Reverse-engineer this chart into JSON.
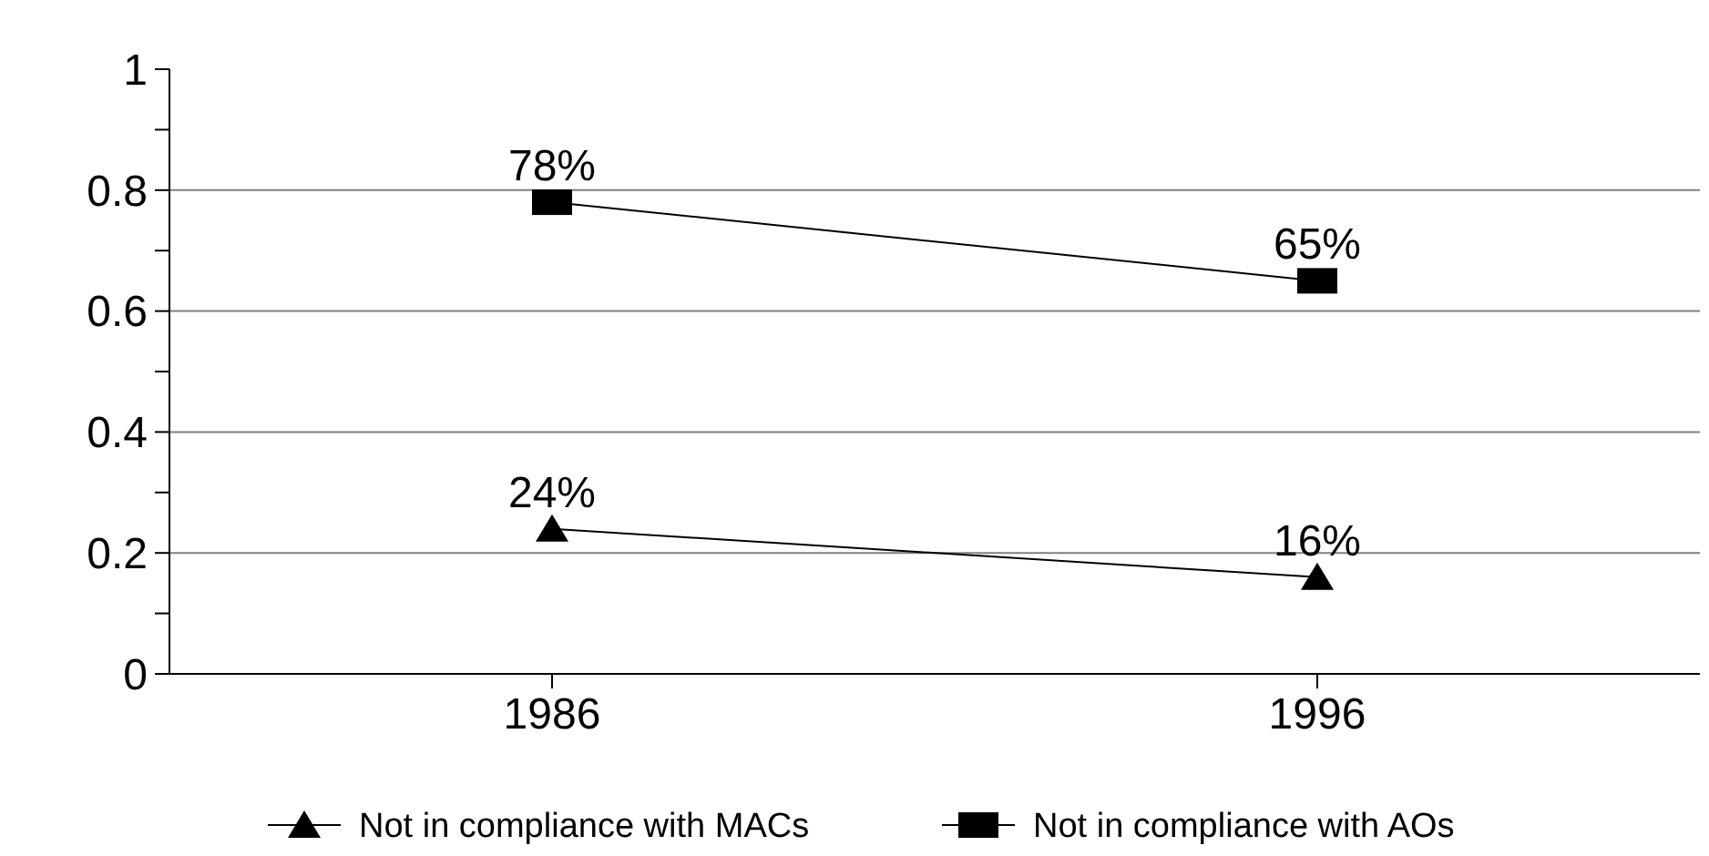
{
  "chart_data": {
    "type": "line",
    "categories": [
      "1986",
      "1996"
    ],
    "series": [
      {
        "name": "Not in compliance with MACs",
        "color": "#000000",
        "marker": "triangle",
        "values": [
          0.24,
          0.16
        ],
        "value_labels": [
          "24%",
          "16%"
        ]
      },
      {
        "name": "Not in compliance with AOs",
        "color": "#000000",
        "marker": "square",
        "values": [
          0.78,
          0.65
        ],
        "value_labels": [
          "78%",
          "65%"
        ]
      }
    ],
    "ylim": [
      0,
      1
    ],
    "yticks": [
      0,
      {
        "value": 0.1,
        "label": null
      },
      0.2,
      {
        "value": 0.3,
        "label": null
      },
      0.4,
      {
        "value": 0.5,
        "label": null
      },
      0.6,
      {
        "value": 0.7,
        "label": null
      },
      0.8,
      {
        "value": 0.9,
        "label": null
      },
      1
    ],
    "grid": "y",
    "legend": "bottom",
    "line_style": "solid"
  }
}
